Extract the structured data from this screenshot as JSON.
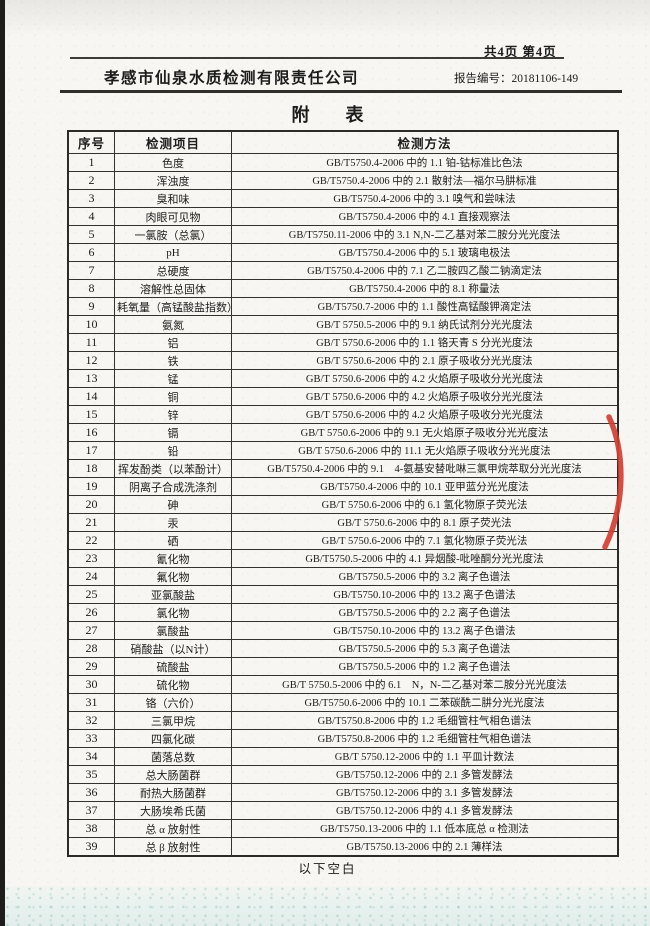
{
  "page": {
    "page_indicator": "共4页 第4页",
    "company_name": "孝感市仙泉水质检测有限责任公司",
    "report_no": "报告编号：20181106-149",
    "title": "附        表",
    "footer_note": "以下空白"
  },
  "table": {
    "headers": [
      "序号",
      "检测项目",
      "检测方法"
    ],
    "rows": [
      {
        "no": "1",
        "item": "色度",
        "method": "GB/T5750.4-2006 中的 1.1 铂-钴标准比色法"
      },
      {
        "no": "2",
        "item": "浑浊度",
        "method": "GB/T5750.4-2006 中的 2.1 散射法—福尔马肼标准"
      },
      {
        "no": "3",
        "item": "臭和味",
        "method": "GB/T5750.4-2006 中的 3.1 嗅气和尝味法"
      },
      {
        "no": "4",
        "item": "肉眼可见物",
        "method": "GB/T5750.4-2006 中的 4.1 直接观察法"
      },
      {
        "no": "5",
        "item": "一氯胺（总氯）",
        "method": "GB/T5750.11-2006 中的 3.1 N,N-二乙基对苯二胺分光光度法"
      },
      {
        "no": "6",
        "item": "pH",
        "method": "GB/T5750.4-2006 中的 5.1 玻璃电极法"
      },
      {
        "no": "7",
        "item": "总硬度",
        "method": "GB/T5750.4-2006 中的 7.1 乙二胺四乙酸二钠滴定法"
      },
      {
        "no": "8",
        "item": "溶解性总固体",
        "method": "GB/T5750.4-2006 中的 8.1 称量法"
      },
      {
        "no": "9",
        "item": "耗氧量（高锰酸盐指数）",
        "method": "GB/T5750.7-2006 中的 1.1 酸性高锰酸钾滴定法"
      },
      {
        "no": "10",
        "item": "氨氮",
        "method": "GB/T 5750.5-2006 中的 9.1 纳氏试剂分光光度法"
      },
      {
        "no": "11",
        "item": "铝",
        "method": "GB/T 5750.6-2006 中的 1.1 铬天青 S 分光光度法"
      },
      {
        "no": "12",
        "item": "铁",
        "method": "GB/T 5750.6-2006 中的 2.1 原子吸收分光光度法"
      },
      {
        "no": "13",
        "item": "锰",
        "method": "GB/T 5750.6-2006 中的 4.2 火焰原子吸收分光光度法"
      },
      {
        "no": "14",
        "item": "铜",
        "method": "GB/T 5750.6-2006 中的 4.2 火焰原子吸收分光光度法"
      },
      {
        "no": "15",
        "item": "锌",
        "method": "GB/T 5750.6-2006 中的 4.2 火焰原子吸收分光光度法"
      },
      {
        "no": "16",
        "item": "镉",
        "method": "GB/T 5750.6-2006 中的 9.1 无火焰原子吸收分光光度法"
      },
      {
        "no": "17",
        "item": "铅",
        "method": "GB/T 5750.6-2006 中的 11.1 无火焰原子吸收分光光度法"
      },
      {
        "no": "18",
        "item": "挥发酚类（以苯酚计）",
        "method": "GB/T5750.4-2006 中的 9.1　4-氨基安替吡啉三氯甲烷萃取分光光度法"
      },
      {
        "no": "19",
        "item": "阴离子合成洗涤剂",
        "method": "GB/T5750.4-2006 中的 10.1 亚甲蓝分光光度法"
      },
      {
        "no": "20",
        "item": "砷",
        "method": "GB/T 5750.6-2006 中的 6.1 氢化物原子荧光法"
      },
      {
        "no": "21",
        "item": "汞",
        "method": "GB/T 5750.6-2006 中的 8.1 原子荧光法"
      },
      {
        "no": "22",
        "item": "硒",
        "method": "GB/T 5750.6-2006 中的 7.1 氢化物原子荧光法"
      },
      {
        "no": "23",
        "item": "氰化物",
        "method": "GB/T5750.5-2006 中的 4.1 异烟酸-吡唑酮分光光度法"
      },
      {
        "no": "24",
        "item": "氟化物",
        "method": "GB/T5750.5-2006 中的 3.2 离子色谱法"
      },
      {
        "no": "25",
        "item": "亚氯酸盐",
        "method": "GB/T5750.10-2006 中的 13.2 离子色谱法"
      },
      {
        "no": "26",
        "item": "氯化物",
        "method": "GB/T5750.5-2006 中的 2.2 离子色谱法"
      },
      {
        "no": "27",
        "item": "氯酸盐",
        "method": "GB/T5750.10-2006 中的 13.2 离子色谱法"
      },
      {
        "no": "28",
        "item": "硝酸盐（以N计）",
        "method": "GB/T5750.5-2006 中的 5.3 离子色谱法"
      },
      {
        "no": "29",
        "item": "硫酸盐",
        "method": "GB/T5750.5-2006 中的 1.2 离子色谱法"
      },
      {
        "no": "30",
        "item": "硫化物",
        "method": "GB/T 5750.5-2006 中的 6.1　N，N-二乙基对苯二胺分光光度法"
      },
      {
        "no": "31",
        "item": "铬（六价）",
        "method": "GB/T5750.6-2006 中的 10.1 二苯碳酰二肼分光光度法"
      },
      {
        "no": "32",
        "item": "三氯甲烷",
        "method": "GB/T5750.8-2006 中的 1.2 毛细管柱气相色谱法"
      },
      {
        "no": "33",
        "item": "四氯化碳",
        "method": "GB/T5750.8-2006 中的 1.2 毛细管柱气相色谱法"
      },
      {
        "no": "34",
        "item": "菌落总数",
        "method": "GB/T 5750.12-2006 中的 1.1 平皿计数法"
      },
      {
        "no": "35",
        "item": "总大肠菌群",
        "method": "GB/T5750.12-2006 中的 2.1 多管发酵法"
      },
      {
        "no": "36",
        "item": "耐热大肠菌群",
        "method": "GB/T5750.12-2006 中的 3.1 多管发酵法"
      },
      {
        "no": "37",
        "item": "大肠埃希氏菌",
        "method": "GB/T5750.12-2006 中的 4.1 多管发酵法"
      },
      {
        "no": "38",
        "item": "总 α 放射性",
        "method": "GB/T5750.13-2006 中的 1.1 低本底总 α 检测法"
      },
      {
        "no": "39",
        "item": "总 β 放射性",
        "method": "GB/T5750.13-2006 中的 2.1 薄样法"
      }
    ]
  },
  "colors": {
    "stamp_red": "#cf372b",
    "ink": "#1c1c1c"
  }
}
